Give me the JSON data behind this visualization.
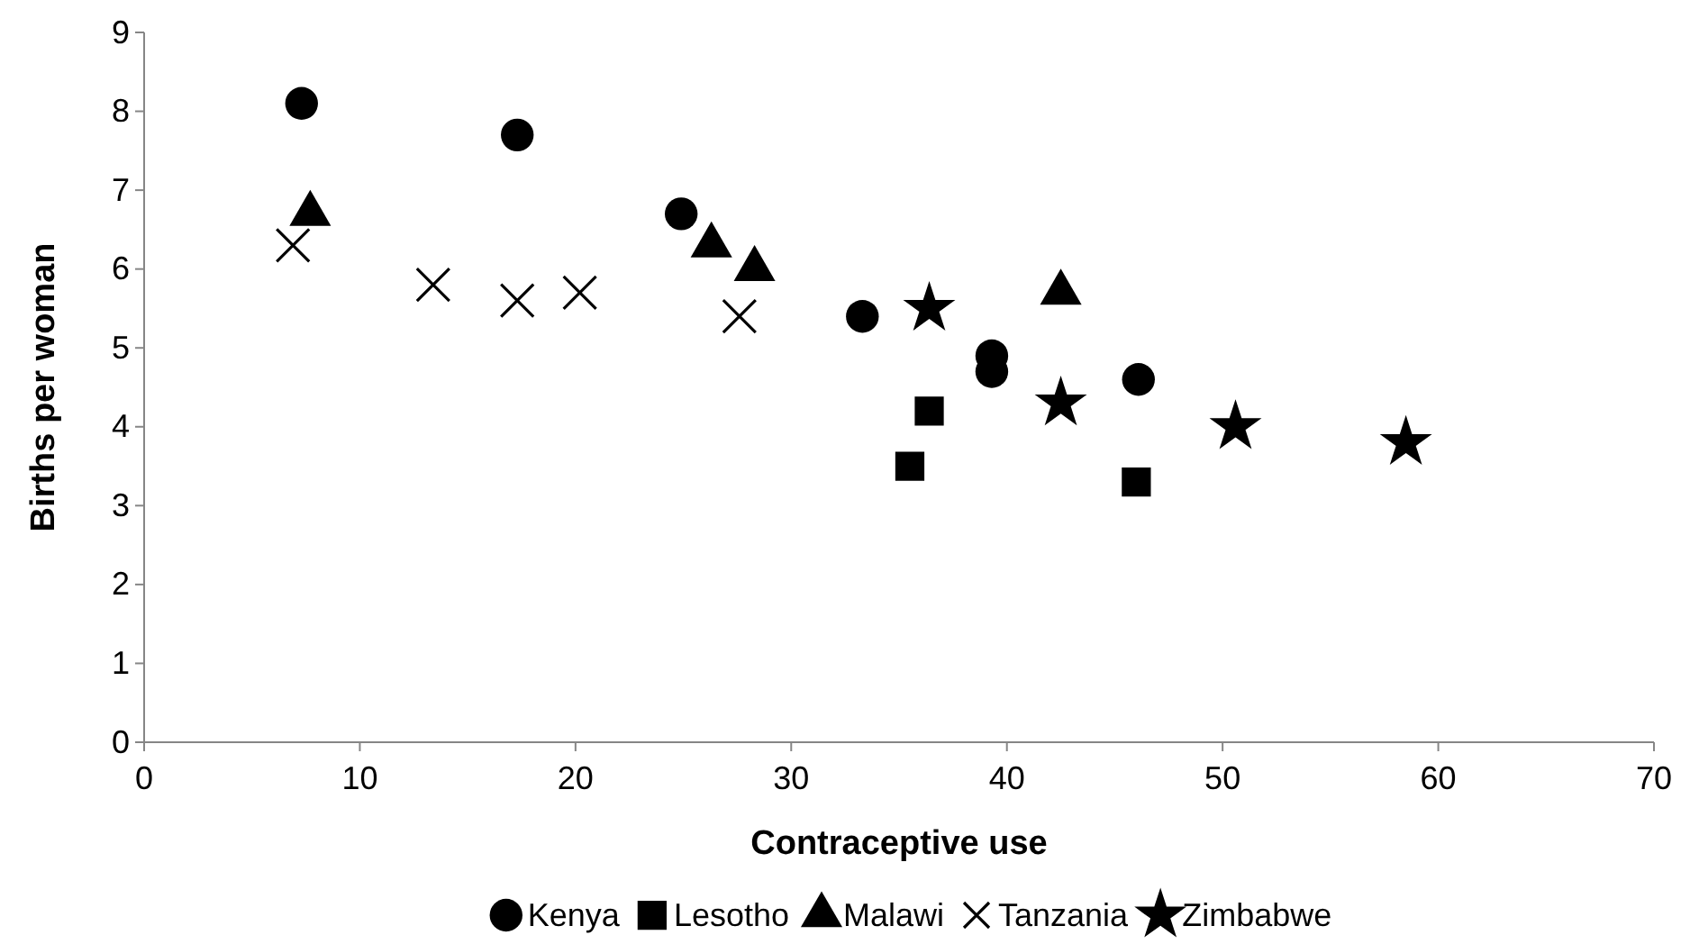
{
  "chart_data": {
    "type": "scatter",
    "xlabel": "Contraceptive use",
    "ylabel": "Births per woman",
    "xlim": [
      0,
      70
    ],
    "xticks": [
      0,
      10,
      20,
      30,
      40,
      50,
      60,
      70
    ],
    "ylim": [
      0,
      9
    ],
    "yticks": [
      0,
      1,
      2,
      3,
      4,
      5,
      6,
      7,
      8,
      9
    ],
    "grid": false,
    "legend": "bottom",
    "series": [
      {
        "name": "Kenya",
        "color": "#000000",
        "marker": "circle",
        "x": [
          7.3,
          17.3,
          24.9,
          33.3,
          39.3,
          39.3,
          46.1
        ],
        "values": [
          8.1,
          7.7,
          6.7,
          5.4,
          4.9,
          4.7,
          4.6
        ]
      },
      {
        "name": "Lesotho",
        "color": "#000000",
        "marker": "square",
        "x": [
          35.5,
          36.4,
          46.0
        ],
        "values": [
          3.5,
          4.2,
          3.3
        ]
      },
      {
        "name": "Malawi",
        "color": "#000000",
        "marker": "triangle",
        "x": [
          7.7,
          26.3,
          28.3,
          42.5
        ],
        "values": [
          6.7,
          6.3,
          6.0,
          5.7
        ]
      },
      {
        "name": "Tanzania",
        "color": "#000000",
        "marker": "cross",
        "x": [
          6.9,
          13.4,
          17.3,
          20.2,
          27.6
        ],
        "values": [
          6.3,
          5.8,
          5.6,
          5.7,
          5.4
        ]
      },
      {
        "name": "Zimbabwe",
        "color": "#000000",
        "marker": "star",
        "x": [
          36.4,
          42.5,
          50.6,
          58.5
        ],
        "values": [
          5.5,
          4.3,
          4.0,
          3.8
        ]
      }
    ]
  }
}
